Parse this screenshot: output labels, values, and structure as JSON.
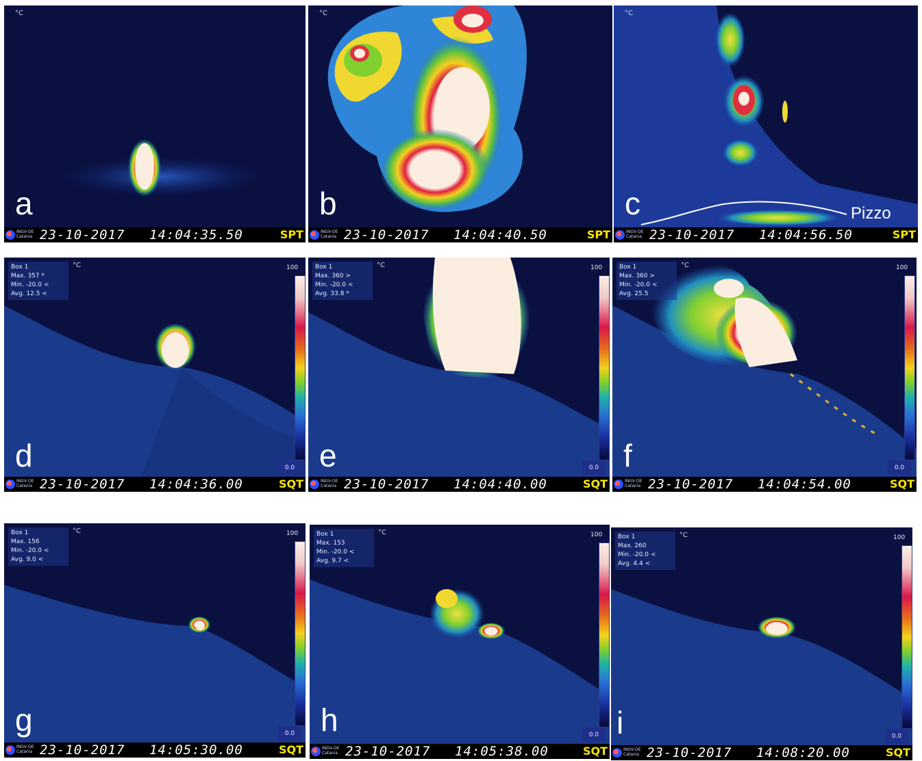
{
  "common": {
    "org_label": "INGV-OE Catania",
    "date": "23-10-2017",
    "unit": "°C"
  },
  "panels": [
    {
      "id": "a",
      "letter": "a",
      "time": "14:04:35.50",
      "mode": "SPT"
    },
    {
      "id": "b",
      "letter": "b",
      "time": "14:04:40.50",
      "mode": "SPT"
    },
    {
      "id": "c",
      "letter": "c",
      "time": "14:04:56.50",
      "mode": "SPT",
      "annotation": "Pizzo"
    },
    {
      "id": "d",
      "letter": "d",
      "time": "14:04:36.00",
      "mode": "SQT",
      "box": "Box 1",
      "max": "Max. 357 *",
      "min": "Min. -20.0 <",
      "avg": "Avg. 12.5 <",
      "scale_max": "100",
      "scale_min": "0.0"
    },
    {
      "id": "e",
      "letter": "e",
      "time": "14:04:40.00",
      "mode": "SQT",
      "box": "Box 1",
      "max": "Max. 360 >",
      "min": "Min. -20.0 <",
      "avg": "Avg. 33.8 *",
      "scale_max": "100",
      "scale_min": "0.0"
    },
    {
      "id": "f",
      "letter": "f",
      "time": "14:04:54.00",
      "mode": "SQT",
      "box": "Box 1",
      "max": "Max. 360 >",
      "min": "Min. -20.0 <",
      "avg": "Avg. 25.5",
      "scale_max": "100",
      "scale_min": "0.0"
    },
    {
      "id": "g",
      "letter": "g",
      "time": "14:05:30.00",
      "mode": "SQT",
      "box": "Box 1",
      "max": "Max. 156",
      "min": "Min. -20.0 <",
      "avg": "Avg. 9.0 <",
      "scale_max": "100",
      "scale_min": "0.0"
    },
    {
      "id": "h",
      "letter": "h",
      "time": "14:05:38.00",
      "mode": "SQT",
      "box": "Box 1",
      "max": "Max. 153",
      "min": "Min. -20.0 <",
      "avg": "Avg. 9.7 <",
      "scale_max": "100",
      "scale_min": "0.0"
    },
    {
      "id": "i",
      "letter": "i",
      "time": "14:08:20.00",
      "mode": "SQT",
      "box": "Box 1",
      "max": "Max. 260",
      "min": "Min. -20.0 <",
      "avg": "Avg. 4.4 <",
      "scale_max": "100",
      "scale_min": "0.0"
    }
  ]
}
